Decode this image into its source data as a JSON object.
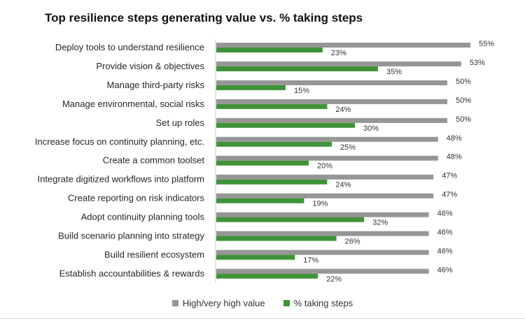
{
  "chart_data": {
    "type": "bar",
    "orientation": "horizontal",
    "title": "Top resilience steps generating value vs. % taking steps",
    "categories": [
      "Deploy tools to understand resilience",
      "Provide vision & objectives",
      "Manage third-party risks",
      "Manage environmental, social risks",
      "Set up roles",
      "Increase focus on continuity planning, etc.",
      "Create a common toolset",
      "Integrate digitized workflows into platform",
      "Create reporting on risk indicators",
      "Adopt continuity planning tools",
      "Build scenario planning into strategy",
      "Build resilient ecosystem",
      "Establish accountabilities & rewards"
    ],
    "series": [
      {
        "name": "High/very high value",
        "color": "#969696",
        "values": [
          55,
          53,
          50,
          50,
          50,
          48,
          48,
          47,
          47,
          46,
          46,
          46,
          46
        ]
      },
      {
        "name": "% taking steps",
        "color": "#3f9238",
        "values": [
          23,
          35,
          15,
          24,
          30,
          25,
          20,
          24,
          19,
          32,
          26,
          17,
          22
        ]
      }
    ],
    "value_suffix": "%",
    "xlim": [
      0,
      55
    ],
    "grid": false,
    "legend_position": "bottom"
  }
}
